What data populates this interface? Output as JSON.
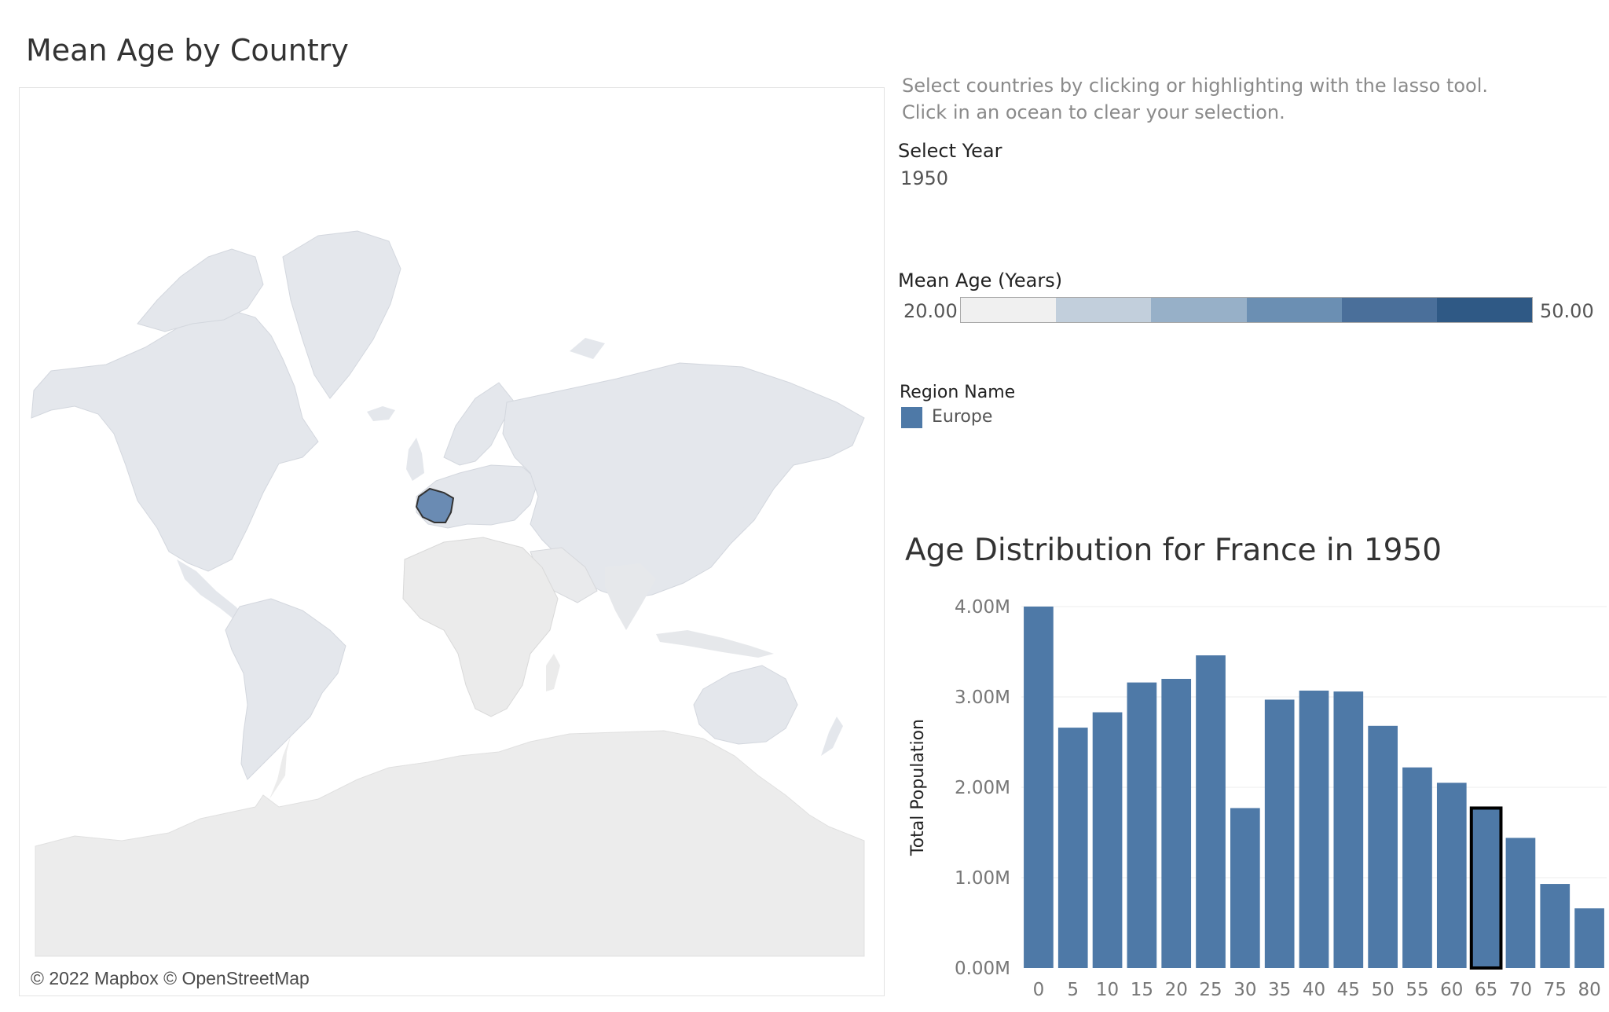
{
  "dashboard": {
    "title": "Mean Age by Country"
  },
  "map": {
    "attribution": "© 2022 Mapbox © OpenStreetMap",
    "land_color": "#e6e8ec",
    "selected_country": "France",
    "selected_color": "#6a8bb3"
  },
  "instructions": {
    "line1": "Select countries by clicking or highlighting with the lasso tool.",
    "line2": "Click in an ocean to clear your selection."
  },
  "year_filter": {
    "label": "Select Year",
    "value": "1950"
  },
  "color_legend": {
    "title": "Mean Age (Years)",
    "min": "20.00",
    "max": "50.00",
    "colors": [
      "#f0f0f0",
      "#c2cfdc",
      "#97b0c8",
      "#6b8fb3",
      "#4a6f9a",
      "#2f5985"
    ]
  },
  "region_legend": {
    "title": "Region Name",
    "items": [
      {
        "name": "Europe",
        "color": "#4e79a7"
      }
    ]
  },
  "chart_data": {
    "type": "bar",
    "title": "Age Distribution for France in 1950",
    "xlabel": "",
    "ylabel": "Total Population",
    "categories": [
      "0",
      "5",
      "10",
      "15",
      "20",
      "25",
      "30",
      "35",
      "40",
      "45",
      "50",
      "55",
      "60",
      "65",
      "70",
      "75",
      "80"
    ],
    "values": [
      4.0,
      2.66,
      2.83,
      3.16,
      3.2,
      3.46,
      1.77,
      2.97,
      3.07,
      3.06,
      2.68,
      2.22,
      2.05,
      1.77,
      1.44,
      0.93,
      0.66
    ],
    "value_unit": "M",
    "ylim": [
      0,
      4.0
    ],
    "yticks": [
      "0.00M",
      "1.00M",
      "2.00M",
      "3.00M",
      "4.00M"
    ],
    "highlighted_category": "65",
    "bar_color": "#4e79a7",
    "grid": true
  }
}
